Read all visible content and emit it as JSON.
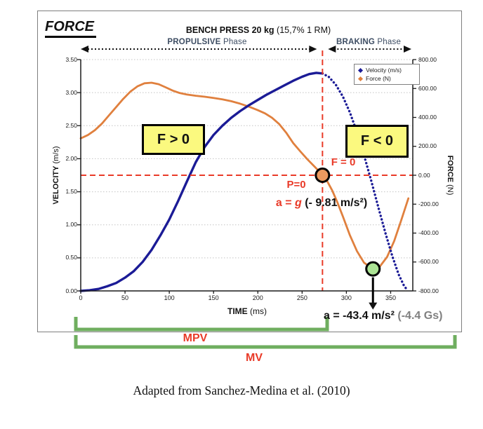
{
  "figure": {
    "corner_title": "FORCE",
    "title_bold": "BENCH PRESS 20 kg",
    "title_tail": " (15,7% 1 RM)",
    "caption": "Adapted from Sanchez-Medina et al. (2010)"
  },
  "phases": {
    "propulsive_bold": "PROPULSIVE",
    "propulsive_tail": " Phase",
    "braking_bold": "BRAKING",
    "braking_tail": " Phase"
  },
  "axes": {
    "x": {
      "label_bold": "TIME",
      "label_tail": " (ms)",
      "ticks": [
        "0",
        "50",
        "100",
        "150",
        "200",
        "250",
        "300",
        "350"
      ]
    },
    "y_left": {
      "label_bold": "VELOCITY",
      "label_tail": " (m/s)",
      "ticks": [
        "3.50",
        "3.00",
        "2.50",
        "2.00",
        "1.50",
        "1.00",
        "0.50",
        "0.00"
      ]
    },
    "y_right": {
      "label_bold": "FORCE",
      "label_tail": " (N)",
      "ticks": [
        "800.00",
        "600.00",
        "400.00",
        "200.00",
        "0.00",
        "-200.00",
        "-400.00",
        "-600.00",
        "-800.00"
      ]
    }
  },
  "legend": [
    {
      "label": "Velocity (m/s)",
      "color": "#1b1b96"
    },
    {
      "label": "Force (N)",
      "color": "#e0803e"
    }
  ],
  "annotations": {
    "f_positive": "F > 0",
    "f_negative": "F < 0",
    "f_zero": "F = 0",
    "p_zero": "P=0",
    "a_g_red": "a = ",
    "a_g_italic": "g",
    "a_g_black": " (- 9.81 m/s²)",
    "a_brake": "a = -43.4 m/s²",
    "a_brake_gs": " (-4.4 Gs)",
    "mpv": "MPV",
    "mv": "MV"
  },
  "colors": {
    "velocity": "#1b1b96",
    "force": "#e0803e",
    "red": "#e93a28",
    "bracket": "#6fae5f",
    "marker_p0_fill": "#eb9a60",
    "marker_min_fill": "#ace495",
    "box_yellow": "#fbf97f",
    "phase_text": "#3d4d63",
    "gs_grey": "#808080"
  },
  "chart_data": {
    "type": "line",
    "title": "BENCH PRESS 20 kg (15,7% 1 RM)",
    "xlabel": "TIME (ms)",
    "x_range_ms": [
      0,
      375
    ],
    "y_left_axis": {
      "label": "VELOCITY (m/s)",
      "range": [
        0,
        3.5
      ],
      "tick_step": 0.5
    },
    "y_right_axis": {
      "label": "FORCE (N)",
      "range": [
        -800,
        800
      ],
      "tick_step": 200
    },
    "grid": "horizontal-dotted",
    "legend_position": "top-right-inside",
    "phase_split_ms": 273,
    "series": [
      {
        "name": "Velocity (m/s)",
        "axis": "left",
        "color": "#1b1b96",
        "style": "solid-then-dotted-after-split",
        "points": [
          [
            0,
            0.0
          ],
          [
            10,
            0.01
          ],
          [
            20,
            0.03
          ],
          [
            30,
            0.07
          ],
          [
            40,
            0.12
          ],
          [
            50,
            0.2
          ],
          [
            60,
            0.3
          ],
          [
            70,
            0.44
          ],
          [
            80,
            0.62
          ],
          [
            90,
            0.84
          ],
          [
            100,
            1.08
          ],
          [
            110,
            1.36
          ],
          [
            120,
            1.66
          ],
          [
            130,
            1.95
          ],
          [
            140,
            2.18
          ],
          [
            150,
            2.36
          ],
          [
            160,
            2.5
          ],
          [
            170,
            2.62
          ],
          [
            180,
            2.72
          ],
          [
            190,
            2.81
          ],
          [
            200,
            2.89
          ],
          [
            210,
            2.97
          ],
          [
            220,
            3.04
          ],
          [
            230,
            3.11
          ],
          [
            240,
            3.18
          ],
          [
            250,
            3.24
          ],
          [
            258,
            3.28
          ],
          [
            266,
            3.3
          ],
          [
            273,
            3.29
          ],
          [
            280,
            3.24
          ],
          [
            288,
            3.12
          ],
          [
            296,
            2.94
          ],
          [
            304,
            2.7
          ],
          [
            312,
            2.4
          ],
          [
            320,
            2.05
          ],
          [
            328,
            1.67
          ],
          [
            336,
            1.27
          ],
          [
            344,
            0.88
          ],
          [
            352,
            0.52
          ],
          [
            359,
            0.25
          ],
          [
            365,
            0.08
          ],
          [
            369,
            0.01
          ]
        ]
      },
      {
        "name": "Force (N)",
        "axis": "right",
        "color": "#e0803e",
        "style": "solid",
        "points": [
          [
            0,
            255
          ],
          [
            8,
            278
          ],
          [
            16,
            312
          ],
          [
            24,
            358
          ],
          [
            32,
            415
          ],
          [
            40,
            472
          ],
          [
            48,
            528
          ],
          [
            56,
            578
          ],
          [
            64,
            615
          ],
          [
            72,
            636
          ],
          [
            80,
            640
          ],
          [
            88,
            630
          ],
          [
            96,
            608
          ],
          [
            104,
            585
          ],
          [
            112,
            568
          ],
          [
            120,
            558
          ],
          [
            130,
            550
          ],
          [
            140,
            543
          ],
          [
            150,
            535
          ],
          [
            160,
            525
          ],
          [
            170,
            512
          ],
          [
            180,
            495
          ],
          [
            190,
            474
          ],
          [
            200,
            450
          ],
          [
            208,
            428
          ],
          [
            216,
            398
          ],
          [
            224,
            355
          ],
          [
            232,
            295
          ],
          [
            240,
            222
          ],
          [
            248,
            165
          ],
          [
            256,
            110
          ],
          [
            264,
            60
          ],
          [
            269,
            28
          ],
          [
            273,
            0
          ],
          [
            278,
            -38
          ],
          [
            284,
            -105
          ],
          [
            290,
            -190
          ],
          [
            296,
            -285
          ],
          [
            304,
            -415
          ],
          [
            312,
            -525
          ],
          [
            320,
            -605
          ],
          [
            330,
            -648
          ],
          [
            338,
            -630
          ],
          [
            346,
            -565
          ],
          [
            354,
            -455
          ],
          [
            362,
            -310
          ],
          [
            370,
            -160
          ]
        ]
      }
    ],
    "markers": [
      {
        "name": "p-zero-point",
        "t_ms": 273,
        "force_n": 0,
        "fill": "#eb9a60"
      },
      {
        "name": "min-force-point",
        "t_ms": 330,
        "force_n": -648,
        "fill": "#ace495"
      }
    ],
    "reference_lines": {
      "horizontal_force_zero": 0,
      "vertical_event_time_ms": 273
    }
  }
}
